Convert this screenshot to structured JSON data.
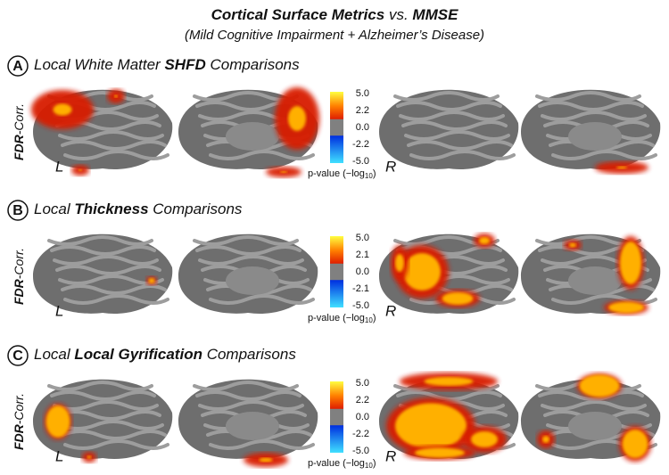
{
  "title": [
    "Cortical Surface Metrics",
    " vs. ",
    "MMSE"
  ],
  "subtitle": "(Mild Cognitive Impairment + Alzheimer’s Disease)",
  "panels": [
    {
      "letter": "A",
      "heading": [
        "Local White Matter ",
        "SHFD",
        " Comparisons"
      ],
      "side_label": [
        "FDR",
        "-Corr."
      ],
      "left": "L",
      "right": "R",
      "colorbar": {
        "ticks": [
          "5.0",
          "2.2",
          "0.0",
          "-2.2",
          "-5.0"
        ],
        "caption": [
          "p-value (−log",
          "10",
          ")"
        ]
      }
    },
    {
      "letter": "B",
      "heading": [
        "Local ",
        "Thickness",
        " Comparisons"
      ],
      "side_label": [
        "FDR",
        "-Corr."
      ],
      "left": "L",
      "right": "R",
      "colorbar": {
        "ticks": [
          "5.0",
          "2.1",
          "0.0",
          "-2.1",
          "-5.0"
        ],
        "caption": [
          "p-value (−log",
          "10",
          ")"
        ]
      }
    },
    {
      "letter": "C",
      "heading": [
        "Local ",
        "Local Gyrification",
        " Comparisons"
      ],
      "side_label": [
        "FDR",
        "-Corr."
      ],
      "left": "L",
      "right": "R",
      "colorbar": {
        "ticks": [
          "5.0",
          "2.2",
          "0.0",
          "-2.2",
          "-5.0"
        ],
        "caption": [
          "p-value (−log",
          "10",
          ")"
        ]
      }
    }
  ]
}
